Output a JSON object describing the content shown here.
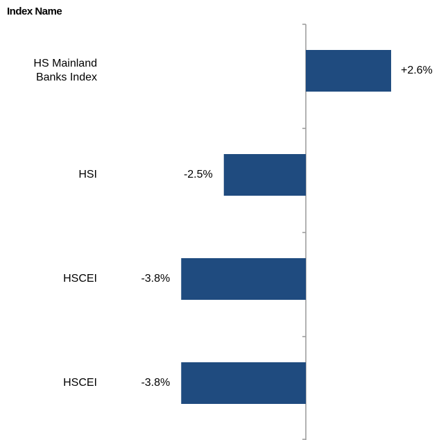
{
  "chart_data": {
    "type": "hbar",
    "title": "Index Name",
    "categories": [
      "HS Mainland Banks Index",
      "HSI",
      "HSCEI",
      "HSCEI"
    ],
    "values": [
      2.6,
      -2.5,
      -3.8,
      -3.8
    ],
    "value_labels": [
      "+2.6%",
      "-2.5%",
      "-3.8%",
      "-3.8%"
    ],
    "color": "#1f4b7f"
  }
}
